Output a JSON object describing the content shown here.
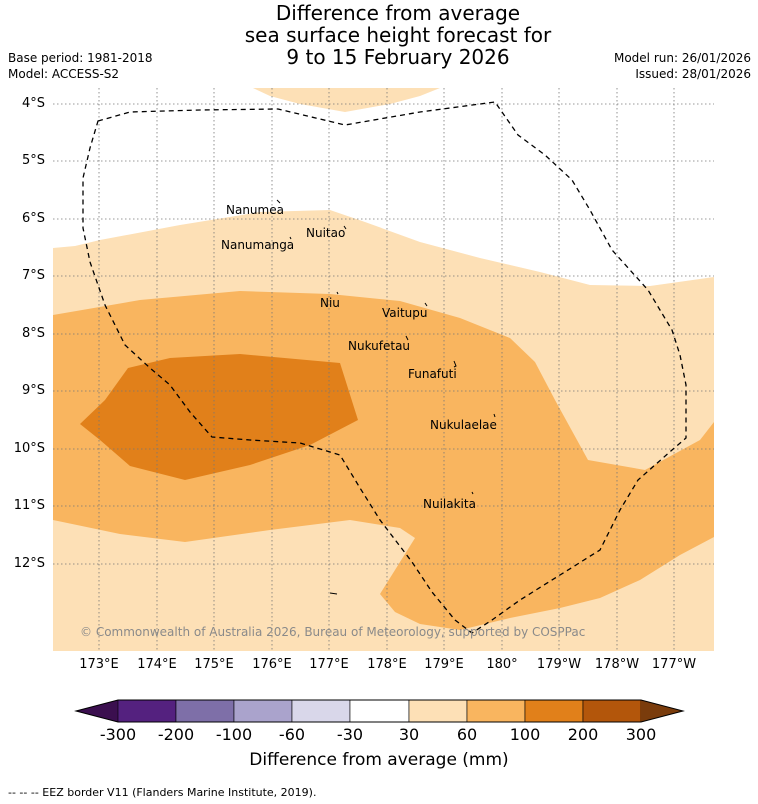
{
  "title": {
    "line1": "Difference from average",
    "line2": "sea surface height forecast for",
    "line3": "9 to 15 February 2026"
  },
  "meta": {
    "base_period": "Base period: 1981-2018",
    "model": "Model: ACCESS-S2",
    "model_run": "Model run: 26/01/2026",
    "issued": "Issued: 28/01/2026"
  },
  "latitude_labels": [
    "4°S",
    "5°S",
    "6°S",
    "7°S",
    "8°S",
    "9°S",
    "10°S",
    "11°S",
    "12°S"
  ],
  "longitude_labels": [
    "173°E",
    "174°E",
    "175°E",
    "176°E",
    "177°E",
    "178°E",
    "179°E",
    "180°",
    "179°W",
    "178°W",
    "177°W"
  ],
  "places": [
    {
      "name": "Nanumea"
    },
    {
      "name": "Nuitao"
    },
    {
      "name": "Nanumanga"
    },
    {
      "name": "Niu"
    },
    {
      "name": "Vaitupu"
    },
    {
      "name": "Nukufetau"
    },
    {
      "name": "Funafuti"
    },
    {
      "name": "Nukulaelae"
    },
    {
      "name": "Nuilakita"
    }
  ],
  "copyright": "© Commonwealth of Australia 2026, Bureau of Meteorology, supported by COSPPac",
  "colorbar": {
    "ticks": [
      "-300",
      "-200",
      "-100",
      "-60",
      "-30",
      "30",
      "60",
      "100",
      "200",
      "300"
    ],
    "colors": [
      "#3b0f4f",
      "#54217f",
      "#7e6fa8",
      "#aaa3cc",
      "#d9d7ea",
      "#ffffff",
      "#fde0b6",
      "#f9b55f",
      "#e1801a",
      "#b3560b",
      "#7a3c0c"
    ],
    "title": "Difference from average (mm)"
  },
  "legend": {
    "eez": "-- -- -- EEZ border V11 (Flanders Marine Institute, 2019)."
  }
}
